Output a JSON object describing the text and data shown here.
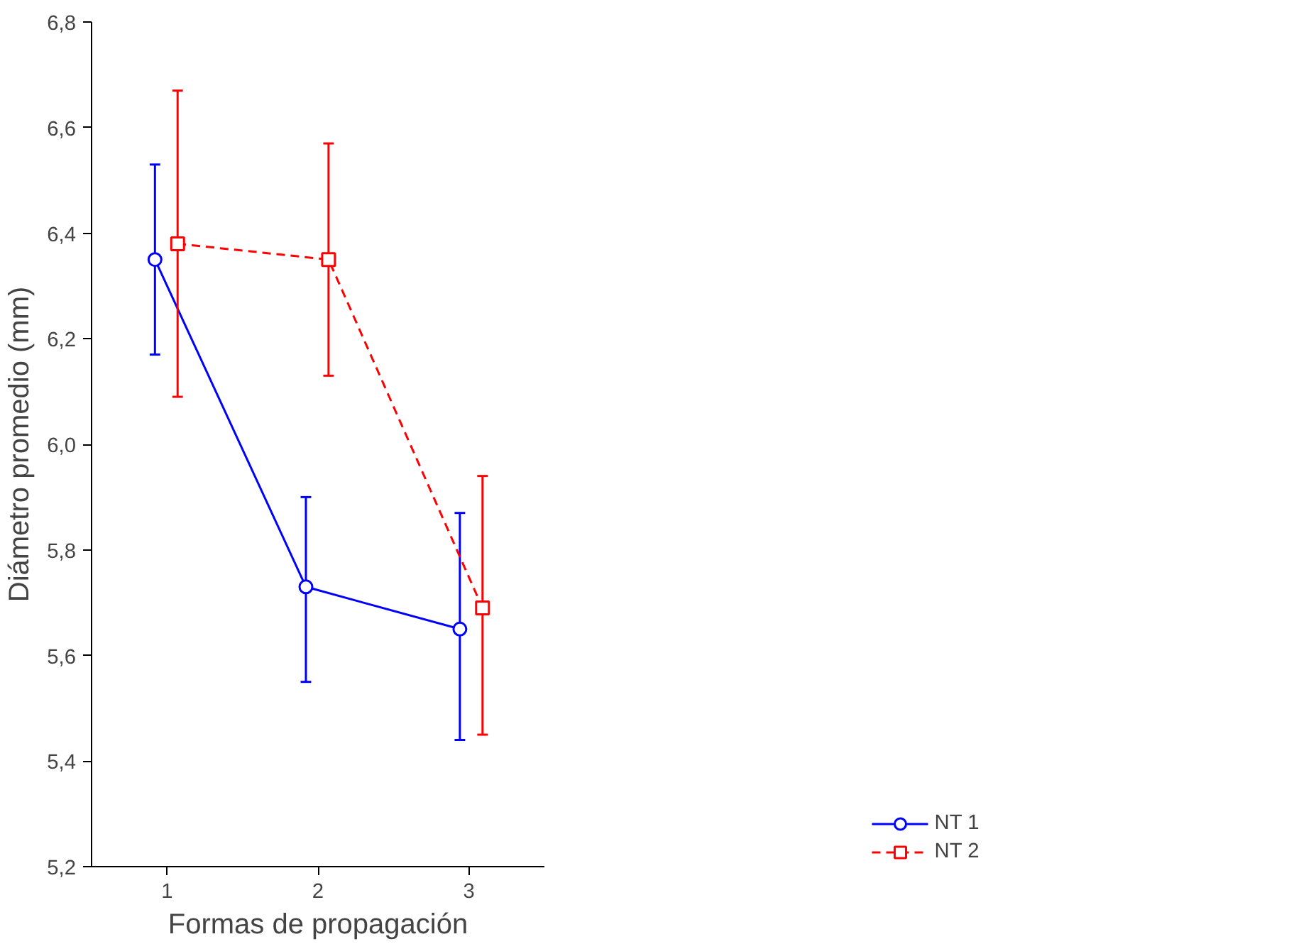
{
  "chart_data": {
    "type": "line",
    "xlabel": "Formas de propagación",
    "ylabel": "Diámetro promedio (mm)",
    "xlim": [
      0.5,
      3.5
    ],
    "xticks": [
      1,
      2,
      3
    ],
    "ylim": [
      5.2,
      6.8
    ],
    "yticks": [
      {
        "value": 5.2,
        "label": "5,2"
      },
      {
        "value": 5.4,
        "label": "5,4"
      },
      {
        "value": 5.6,
        "label": "5,6"
      },
      {
        "value": 5.8,
        "label": "5,8"
      },
      {
        "value": 6.0,
        "label": "6,0"
      },
      {
        "value": 6.2,
        "label": "6,2"
      },
      {
        "value": 6.4,
        "label": "6,4"
      },
      {
        "value": 6.6,
        "label": "6,6"
      },
      {
        "value": 6.8,
        "label": "6,8"
      }
    ],
    "grid": false,
    "legend": "bottom right",
    "series": [
      {
        "name": "NT 1",
        "color": "#0000ff",
        "marker": "circle",
        "line_style": "solid",
        "x": [
          0.92,
          1.92,
          2.94
        ],
        "values": [
          6.35,
          5.73,
          5.65
        ],
        "errors": [
          [
            6.17,
            6.53
          ],
          [
            5.55,
            5.9
          ],
          [
            5.44,
            5.87
          ]
        ]
      },
      {
        "name": "NT 2",
        "color": "#ff0000",
        "marker": "square",
        "line_style": "dashed",
        "x": [
          1.07,
          2.07,
          3.09
        ],
        "values": [
          6.38,
          6.35,
          5.69
        ],
        "errors": [
          [
            6.09,
            6.67
          ],
          [
            6.13,
            6.57
          ],
          [
            5.45,
            5.94
          ]
        ]
      }
    ]
  }
}
